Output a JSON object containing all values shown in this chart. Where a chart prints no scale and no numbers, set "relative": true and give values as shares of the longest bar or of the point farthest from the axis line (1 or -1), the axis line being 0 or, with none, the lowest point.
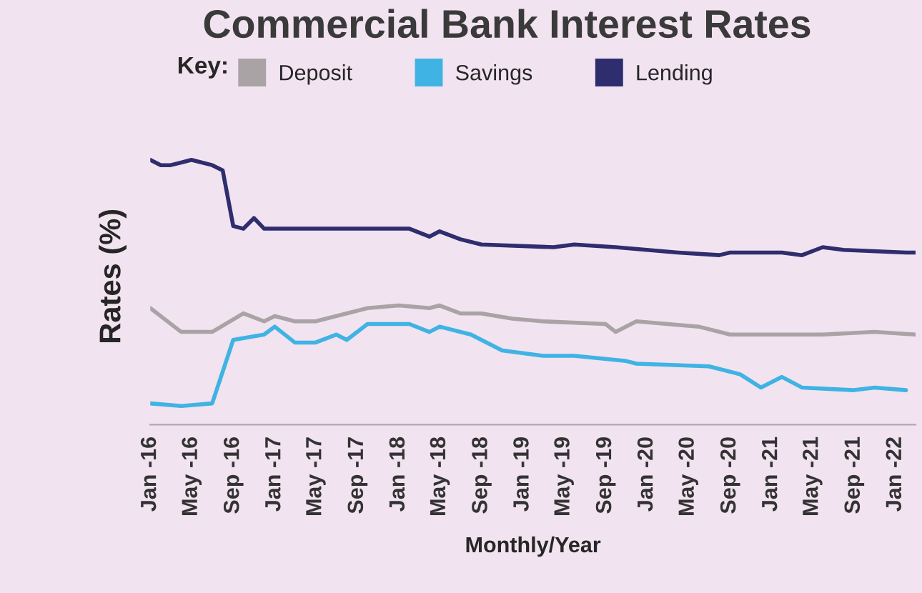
{
  "chart_data": {
    "type": "line",
    "title": "Commercial Bank Interest Rates",
    "xlabel": "Monthly/Year",
    "ylabel": "Rates (%)",
    "legend_title": "Key:",
    "legend": "top",
    "relative": true,
    "grid": false,
    "marker": "none",
    "line_style": "solid",
    "xlim": [
      "2016-01",
      "2022-03"
    ],
    "xticks": [
      {
        "value": "2016-01",
        "label": "Jan -16"
      },
      {
        "value": "2016-05",
        "label": "May -16"
      },
      {
        "value": "2016-09",
        "label": "Sep -16"
      },
      {
        "value": "2017-01",
        "label": "Jan -17"
      },
      {
        "value": "2017-05",
        "label": "May -17"
      },
      {
        "value": "2017-09",
        "label": "Sep -17"
      },
      {
        "value": "2018-01",
        "label": "Jan -18"
      },
      {
        "value": "2018-05",
        "label": "May -18"
      },
      {
        "value": "2018-09",
        "label": "Sep -18"
      },
      {
        "value": "2019-01",
        "label": "Jan -19"
      },
      {
        "value": "2019-05",
        "label": "May -19"
      },
      {
        "value": "2019-09",
        "label": "Sep -19"
      },
      {
        "value": "2020-01",
        "label": "Jan -20"
      },
      {
        "value": "2020-05",
        "label": "May -20"
      },
      {
        "value": "2020-09",
        "label": "Sep -20"
      },
      {
        "value": "2021-01",
        "label": "Jan -21"
      },
      {
        "value": "2021-05",
        "label": "May -21"
      },
      {
        "value": "2021-09",
        "label": "Sep -21"
      },
      {
        "value": "2022-01",
        "label": "Jan -22"
      }
    ],
    "series": [
      {
        "name": "Deposit",
        "color": "#a9a3a6",
        "x": [
          "2016-01",
          "2016-04",
          "2016-07",
          "2016-10",
          "2016-12",
          "2017-01",
          "2017-03",
          "2017-05",
          "2017-10",
          "2018-01",
          "2018-04",
          "2018-05",
          "2018-07",
          "2018-09",
          "2018-12",
          "2019-03",
          "2019-09",
          "2019-10",
          "2019-12",
          "2020-06",
          "2020-09",
          "2021-01",
          "2021-06",
          "2021-11",
          "2022-03"
        ],
        "values": [
          0.44,
          0.35,
          0.35,
          0.42,
          0.39,
          0.41,
          0.39,
          0.39,
          0.44,
          0.45,
          0.44,
          0.45,
          0.42,
          0.42,
          0.4,
          0.39,
          0.38,
          0.35,
          0.39,
          0.37,
          0.34,
          0.34,
          0.34,
          0.35,
          0.34
        ]
      },
      {
        "name": "Savings",
        "color": "#3fb3e3",
        "x": [
          "2016-01",
          "2016-04",
          "2016-07",
          "2016-09",
          "2016-12",
          "2017-01",
          "2017-03",
          "2017-05",
          "2017-07",
          "2017-08",
          "2017-10",
          "2018-02",
          "2018-04",
          "2018-05",
          "2018-08",
          "2018-11",
          "2019-03",
          "2019-06",
          "2019-11",
          "2019-12",
          "2020-07",
          "2020-10",
          "2020-12",
          "2021-02",
          "2021-04",
          "2021-09",
          "2021-11",
          "2022-02"
        ],
        "values": [
          0.08,
          0.07,
          0.08,
          0.32,
          0.34,
          0.37,
          0.31,
          0.31,
          0.34,
          0.32,
          0.38,
          0.38,
          0.35,
          0.37,
          0.34,
          0.28,
          0.26,
          0.26,
          0.24,
          0.23,
          0.22,
          0.19,
          0.14,
          0.18,
          0.14,
          0.13,
          0.14,
          0.13
        ]
      },
      {
        "name": "Lending",
        "color": "#2e2d6e",
        "x": [
          "2016-01",
          "2016-02",
          "2016-03",
          "2016-05",
          "2016-07",
          "2016-08",
          "2016-09",
          "2016-10",
          "2016-11",
          "2016-12",
          "2018-02",
          "2018-04",
          "2018-05",
          "2018-07",
          "2018-09",
          "2019-04",
          "2019-06",
          "2019-10",
          "2020-04",
          "2020-08",
          "2020-09",
          "2021-02",
          "2021-04",
          "2021-06",
          "2021-08",
          "2022-02",
          "2022-03"
        ],
        "values": [
          1.0,
          0.98,
          0.98,
          1.0,
          0.98,
          0.96,
          0.75,
          0.74,
          0.78,
          0.74,
          0.74,
          0.71,
          0.73,
          0.7,
          0.68,
          0.67,
          0.68,
          0.67,
          0.65,
          0.64,
          0.65,
          0.65,
          0.64,
          0.67,
          0.66,
          0.65,
          0.65
        ]
      }
    ]
  }
}
